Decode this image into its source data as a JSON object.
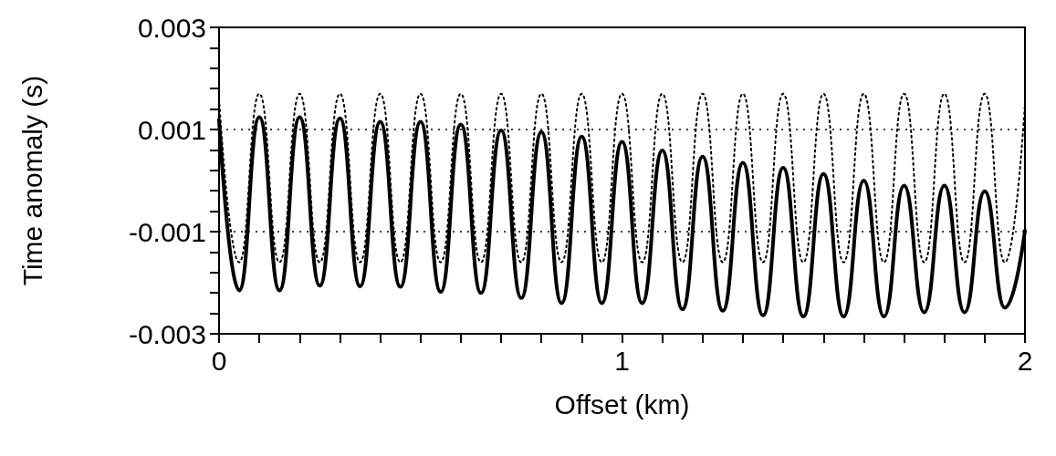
{
  "chart_data": {
    "type": "line",
    "xlabel": "Offset (km)",
    "ylabel": "Time anomaly (s)",
    "x": [
      0,
      0.05,
      0.1,
      0.15,
      0.2,
      0.25,
      0.3,
      0.35,
      0.4,
      0.45,
      0.5,
      0.55,
      0.6,
      0.65,
      0.7,
      0.75,
      0.8,
      0.85,
      0.9,
      0.95,
      1.0,
      1.05,
      1.1,
      1.15,
      1.2,
      1.25,
      1.3,
      1.35,
      1.4,
      1.45,
      1.5,
      1.55,
      1.6,
      1.65,
      1.7,
      1.75,
      1.8,
      1.85,
      1.9,
      1.95,
      2.0
    ],
    "series": [
      {
        "color": "#000000",
        "line_style": "solid",
        "values": [
          0.00119,
          -0.00215,
          0.00124,
          -0.00215,
          0.00124,
          -0.00206,
          0.00122,
          -0.00207,
          0.00115,
          -0.00208,
          0.00115,
          -0.00218,
          0.0011,
          -0.0022,
          0.00098,
          -0.0023,
          0.00095,
          -0.0024,
          0.00086,
          -0.0024,
          0.00076,
          -0.0024,
          0.00059,
          -0.00252,
          0.00047,
          -0.00255,
          0.00035,
          -0.00264,
          0.00025,
          -0.00266,
          0.00013,
          -0.00266,
          0,
          -0.00266,
          -0.0001,
          -0.00258,
          -0.0001,
          -0.00258,
          -0.00021,
          -0.00249,
          -0.00098
        ]
      },
      {
        "color": "#000000",
        "line_style": "dotted",
        "values": [
          0.0016,
          -0.0016,
          0.0017,
          -0.0016,
          0.0017,
          -0.0016,
          0.0017,
          -0.0016,
          0.0017,
          -0.0016,
          0.0017,
          -0.0016,
          0.0017,
          -0.0016,
          0.0017,
          -0.0016,
          0.0017,
          -0.0016,
          0.0017,
          -0.0016,
          0.0017,
          -0.0016,
          0.0017,
          -0.0016,
          0.0017,
          -0.0016,
          0.0017,
          -0.0016,
          0.0017,
          -0.0016,
          0.0017,
          -0.0016,
          0.0017,
          -0.0016,
          0.0017,
          -0.0016,
          0.0017,
          -0.0016,
          0.0017,
          -0.0016,
          0.0015
        ]
      }
    ],
    "xlim": [
      0,
      2
    ],
    "xticks": [
      0,
      {
        "value": 0.1,
        "label": null
      },
      {
        "value": 0.2,
        "label": null
      },
      {
        "value": 0.3,
        "label": null
      },
      {
        "value": 0.4,
        "label": null
      },
      {
        "value": 0.5,
        "label": null
      },
      {
        "value": 0.6,
        "label": null
      },
      {
        "value": 0.7,
        "label": null
      },
      {
        "value": 0.8,
        "label": null
      },
      {
        "value": 0.9,
        "label": null
      },
      1,
      {
        "value": 1.1,
        "label": null
      },
      {
        "value": 1.2,
        "label": null
      },
      {
        "value": 1.3,
        "label": null
      },
      {
        "value": 1.4,
        "label": null
      },
      {
        "value": 1.5,
        "label": null
      },
      {
        "value": 1.6,
        "label": null
      },
      {
        "value": 1.7,
        "label": null
      },
      {
        "value": 1.8,
        "label": null
      },
      {
        "value": 1.9,
        "label": null
      },
      2
    ],
    "ylim": [
      -0.003,
      0.003
    ],
    "yticks": [
      -0.003,
      {
        "value": -0.0026,
        "label": null
      },
      {
        "value": -0.0022,
        "label": null
      },
      {
        "value": -0.0018,
        "label": null
      },
      {
        "value": -0.0014,
        "label": null
      },
      -0.001,
      {
        "value": -0.0006,
        "label": null
      },
      {
        "value": -0.0002,
        "label": null
      },
      {
        "value": 0.0002,
        "label": null
      },
      {
        "value": 0.0006,
        "label": null
      },
      0.001,
      {
        "value": 0.0014,
        "label": null
      },
      {
        "value": 0.0018,
        "label": null
      },
      {
        "value": 0.0022,
        "label": null
      },
      {
        "value": 0.0026,
        "label": null
      },
      0.003
    ],
    "grid": "y",
    "marker": "none"
  }
}
